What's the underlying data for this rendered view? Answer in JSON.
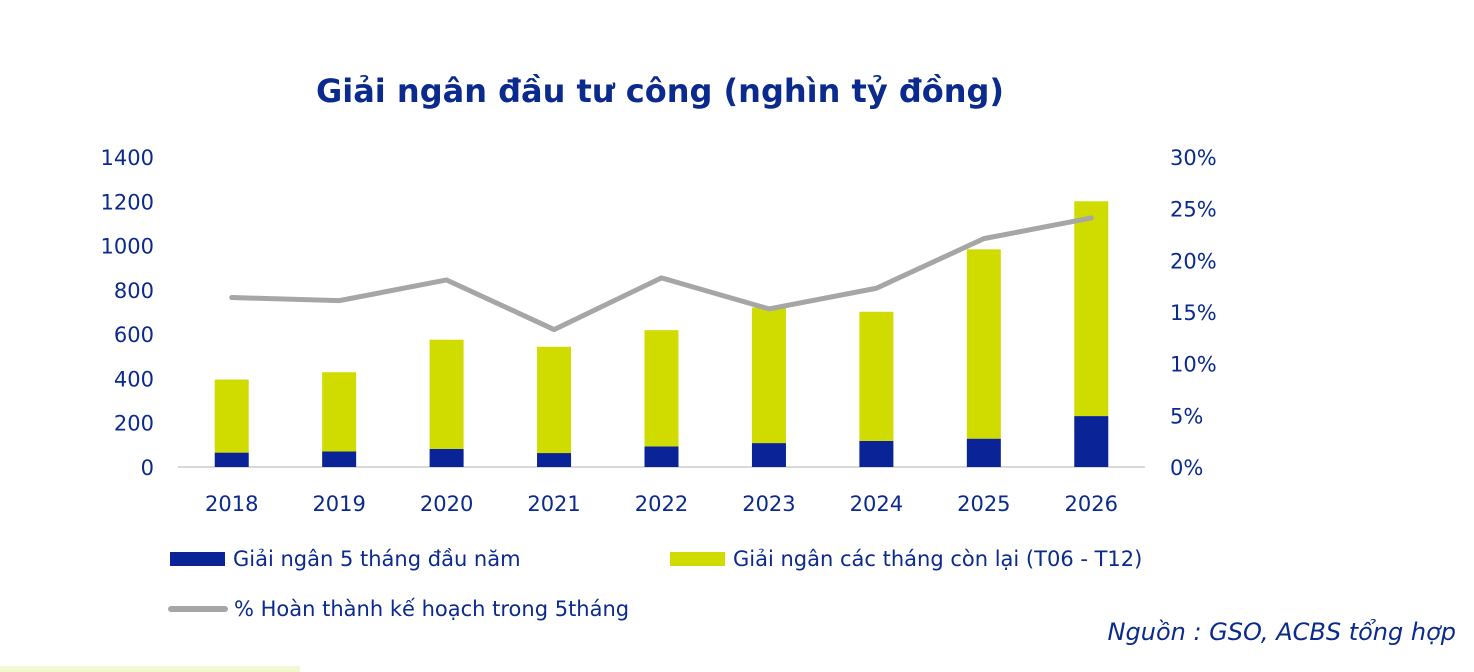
{
  "chart_data": {
    "type": "bar",
    "title": "Giải ngân đầu tư công (nghìn tỷ đồng)",
    "categories": [
      "2018",
      "2019",
      "2020",
      "2021",
      "2022",
      "2023",
      "2024",
      "2025",
      "2026"
    ],
    "series": [
      {
        "name": "Giải ngân 5 tháng đầu năm",
        "kind": "bar-stacked",
        "axis": "left",
        "color": "#0a2396",
        "values": [
          65,
          70,
          82,
          63,
          93,
          108,
          118,
          128,
          230
        ]
      },
      {
        "name": "Giải ngân các tháng còn lại (T06 - T12)",
        "kind": "bar-stacked",
        "axis": "left",
        "color": "#d0dc00",
        "values": [
          330,
          358,
          493,
          480,
          525,
          612,
          583,
          855,
          970
        ]
      },
      {
        "name": "% Hoàn thành kế hoạch  trong 5tháng",
        "kind": "line",
        "axis": "right",
        "color": "#a6a6a6",
        "values": [
          16.4,
          16.1,
          18.1,
          13.3,
          18.3,
          15.3,
          17.3,
          22.1,
          24.1
        ]
      }
    ],
    "y_left": {
      "ylim": [
        0,
        1400
      ],
      "ticks": [
        "0",
        "200",
        "400",
        "600",
        "800",
        "1000",
        "1200",
        "1400"
      ]
    },
    "y_right": {
      "ylim": [
        0,
        30
      ],
      "ticks": [
        "0%",
        "5%",
        "10%",
        "15%",
        "20%",
        "25%",
        "30%"
      ]
    },
    "grid": false,
    "legend_position": "bottom"
  },
  "legend": {
    "item1": "Giải ngân 5 tháng đầu năm",
    "item2": "Giải ngân các tháng còn lại (T06 - T12)",
    "item3": "% Hoàn thành kế hoạch  trong 5tháng"
  },
  "source": "Nguồn : GSO, ACBS tổng hợp",
  "colors": {
    "text": "#0b2a8e",
    "bar_bottom": "#0a2396",
    "bar_top": "#d0dc00",
    "line": "#a6a6a6",
    "axis": "#d9d9d9"
  }
}
